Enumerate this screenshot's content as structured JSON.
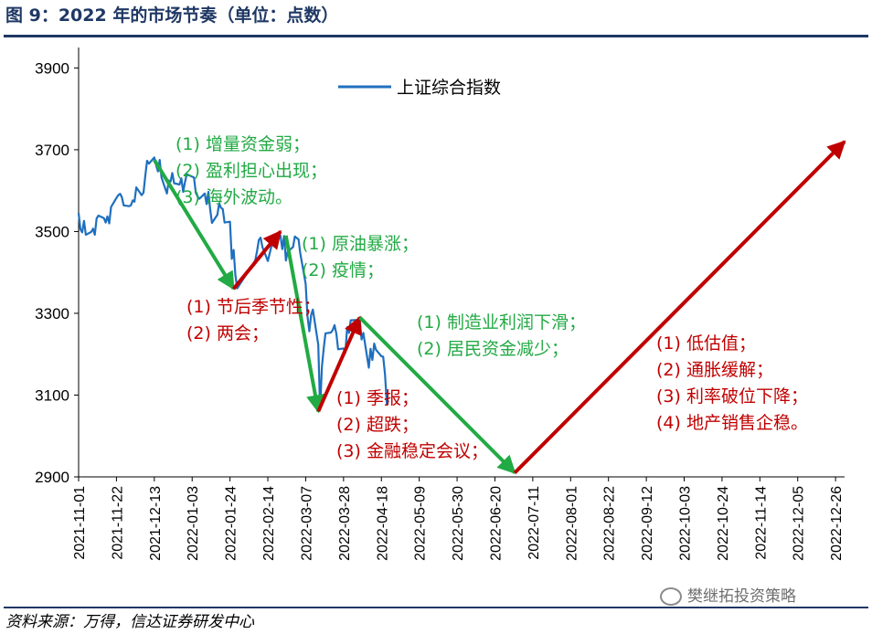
{
  "figure": {
    "title": "图 9：2022 年的市场节奏（单位：点数）",
    "source": "资料来源：万得，信达证券研发中心",
    "watermark": "樊继拓投资策略"
  },
  "colors": {
    "series": "#1f6fbf",
    "green": "#22aa44",
    "red": "#c00000",
    "title": "#1f3864"
  },
  "chart_data": {
    "type": "line",
    "ylim": [
      2900,
      3950
    ],
    "yticks": [
      2900,
      3100,
      3300,
      3500,
      3700,
      3900
    ],
    "xticks": [
      "2021-11-01",
      "2021-11-22",
      "2021-12-13",
      "2022-01-03",
      "2022-01-24",
      "2022-02-14",
      "2022-03-07",
      "2022-03-28",
      "2022-04-18",
      "2022-05-09",
      "2022-05-30",
      "2022-06-20",
      "2022-07-11",
      "2022-08-01",
      "2022-08-22",
      "2022-09-12",
      "2022-10-03",
      "2022-10-24",
      "2022-11-14",
      "2022-12-05",
      "2022-12-26"
    ],
    "legend": {
      "label": "上证综合指数",
      "position": "top-center"
    },
    "series": [
      {
        "name": "上证综合指数",
        "points": [
          [
            "2021-11-01",
            3545
          ],
          [
            "2021-11-02",
            3505
          ],
          [
            "2021-11-03",
            3498
          ],
          [
            "2021-11-04",
            3526
          ],
          [
            "2021-11-05",
            3492
          ],
          [
            "2021-11-08",
            3499
          ],
          [
            "2021-11-09",
            3507
          ],
          [
            "2021-11-10",
            3492
          ],
          [
            "2021-11-11",
            3532
          ],
          [
            "2021-11-12",
            3539
          ],
          [
            "2021-11-15",
            3533
          ],
          [
            "2021-11-16",
            3522
          ],
          [
            "2021-11-17",
            3537
          ],
          [
            "2021-11-18",
            3520
          ],
          [
            "2021-11-19",
            3560
          ],
          [
            "2021-11-22",
            3582
          ],
          [
            "2021-11-23",
            3589
          ],
          [
            "2021-11-24",
            3592
          ],
          [
            "2021-11-25",
            3584
          ],
          [
            "2021-11-26",
            3564
          ],
          [
            "2021-11-29",
            3562
          ],
          [
            "2021-11-30",
            3564
          ],
          [
            "2021-12-01",
            3576
          ],
          [
            "2021-12-02",
            3573
          ],
          [
            "2021-12-03",
            3608
          ],
          [
            "2021-12-06",
            3589
          ],
          [
            "2021-12-07",
            3595
          ],
          [
            "2021-12-08",
            3637
          ],
          [
            "2021-12-09",
            3673
          ],
          [
            "2021-12-10",
            3666
          ],
          [
            "2021-12-13",
            3681
          ],
          [
            "2021-12-14",
            3662
          ],
          [
            "2021-12-15",
            3647
          ],
          [
            "2021-12-16",
            3675
          ],
          [
            "2021-12-17",
            3632
          ],
          [
            "2021-12-20",
            3593
          ],
          [
            "2021-12-21",
            3625
          ],
          [
            "2021-12-22",
            3622
          ],
          [
            "2021-12-23",
            3643
          ],
          [
            "2021-12-24",
            3618
          ],
          [
            "2021-12-27",
            3615
          ],
          [
            "2021-12-28",
            3630
          ],
          [
            "2021-12-29",
            3597
          ],
          [
            "2021-12-30",
            3620
          ],
          [
            "2021-12-31",
            3640
          ],
          [
            "2022-01-04",
            3632
          ],
          [
            "2022-01-05",
            3595
          ],
          [
            "2022-01-06",
            3586
          ],
          [
            "2022-01-07",
            3580
          ],
          [
            "2022-01-10",
            3593
          ],
          [
            "2022-01-11",
            3567
          ],
          [
            "2022-01-12",
            3597
          ],
          [
            "2022-01-13",
            3555
          ],
          [
            "2022-01-14",
            3521
          ],
          [
            "2022-01-17",
            3541
          ],
          [
            "2022-01-18",
            3569
          ],
          [
            "2022-01-19",
            3558
          ],
          [
            "2022-01-20",
            3555
          ],
          [
            "2022-01-21",
            3522
          ],
          [
            "2022-01-24",
            3524
          ],
          [
            "2022-01-25",
            3433
          ],
          [
            "2022-01-26",
            3455
          ],
          [
            "2022-01-27",
            3394
          ],
          [
            "2022-01-28",
            3361
          ],
          [
            "2022-02-07",
            3429
          ],
          [
            "2022-02-08",
            3452
          ],
          [
            "2022-02-09",
            3479
          ],
          [
            "2022-02-10",
            3485
          ],
          [
            "2022-02-11",
            3462
          ],
          [
            "2022-02-14",
            3428
          ],
          [
            "2022-02-15",
            3446
          ],
          [
            "2022-02-16",
            3465
          ],
          [
            "2022-02-17",
            3468
          ],
          [
            "2022-02-18",
            3491
          ],
          [
            "2022-02-21",
            3490
          ],
          [
            "2022-02-22",
            3457
          ],
          [
            "2022-02-23",
            3489
          ],
          [
            "2022-02-24",
            3429
          ],
          [
            "2022-02-25",
            3451
          ],
          [
            "2022-02-28",
            3462
          ],
          [
            "2022-03-01",
            3488
          ],
          [
            "2022-03-02",
            3484
          ],
          [
            "2022-03-03",
            3481
          ],
          [
            "2022-03-04",
            3447
          ],
          [
            "2022-03-07",
            3372
          ],
          [
            "2022-03-08",
            3293
          ],
          [
            "2022-03-09",
            3256
          ],
          [
            "2022-03-10",
            3296
          ],
          [
            "2022-03-11",
            3309
          ],
          [
            "2022-03-14",
            3223
          ],
          [
            "2022-03-15",
            3064
          ],
          [
            "2022-03-16",
            3170
          ],
          [
            "2022-03-17",
            3215
          ],
          [
            "2022-03-18",
            3251
          ],
          [
            "2022-03-21",
            3253
          ],
          [
            "2022-03-22",
            3259
          ],
          [
            "2022-03-23",
            3271
          ],
          [
            "2022-03-24",
            3250
          ],
          [
            "2022-03-25",
            3212
          ],
          [
            "2022-03-28",
            3214
          ],
          [
            "2022-03-29",
            3203
          ],
          [
            "2022-03-30",
            3266
          ],
          [
            "2022-03-31",
            3252
          ],
          [
            "2022-04-01",
            3283
          ],
          [
            "2022-04-06",
            3284
          ],
          [
            "2022-04-07",
            3236
          ],
          [
            "2022-04-08",
            3252
          ],
          [
            "2022-04-11",
            3167
          ],
          [
            "2022-04-12",
            3213
          ],
          [
            "2022-04-13",
            3186
          ],
          [
            "2022-04-14",
            3226
          ],
          [
            "2022-04-15",
            3211
          ],
          [
            "2022-04-18",
            3195
          ],
          [
            "2022-04-19",
            3194
          ],
          [
            "2022-04-20",
            3151
          ],
          [
            "2022-04-21",
            3079
          ],
          [
            "2022-04-22",
            3087
          ]
        ]
      }
    ],
    "arrows": [
      {
        "color": "green",
        "from": [
          "2021-12-13",
          3675
        ],
        "to": [
          "2022-01-26",
          3360
        ]
      },
      {
        "color": "red",
        "from": [
          "2022-01-26",
          3360
        ],
        "to": [
          "2022-02-21",
          3500
        ]
      },
      {
        "color": "green",
        "from": [
          "2022-02-24",
          3490
        ],
        "to": [
          "2022-03-14",
          3060
        ]
      },
      {
        "color": "red",
        "from": [
          "2022-03-14",
          3060
        ],
        "to": [
          "2022-04-06",
          3290
        ]
      },
      {
        "color": "green",
        "from": [
          "2022-04-06",
          3290
        ],
        "to": [
          "2022-07-01",
          2910
        ]
      },
      {
        "color": "red",
        "from": [
          "2022-07-01",
          2910
        ],
        "to": [
          "2022-12-31",
          3720
        ]
      }
    ],
    "annotations": [
      {
        "color": "green",
        "lines": [
          "(1) 增量资金弱；",
          "(2) 盈利担心出现；",
          "(3) 海外波动。"
        ]
      },
      {
        "color": "red",
        "lines": [
          "(1) 节后季节性；",
          "(2) 两会；"
        ]
      },
      {
        "color": "green",
        "lines": [
          "(1) 原油暴涨；",
          "(2) 疫情；"
        ]
      },
      {
        "color": "red",
        "lines": [
          "(1) 季报；",
          "(2) 超跌；",
          "(3) 金融稳定会议；"
        ]
      },
      {
        "color": "green",
        "lines": [
          "(1) 制造业利润下滑；",
          "(2) 居民资金减少；"
        ]
      },
      {
        "color": "red",
        "lines": [
          "(1)  低估值；",
          "(2)  通胀缓解；",
          "(3)  利率破位下降；",
          "(4)  地产销售企稳。"
        ]
      }
    ]
  }
}
